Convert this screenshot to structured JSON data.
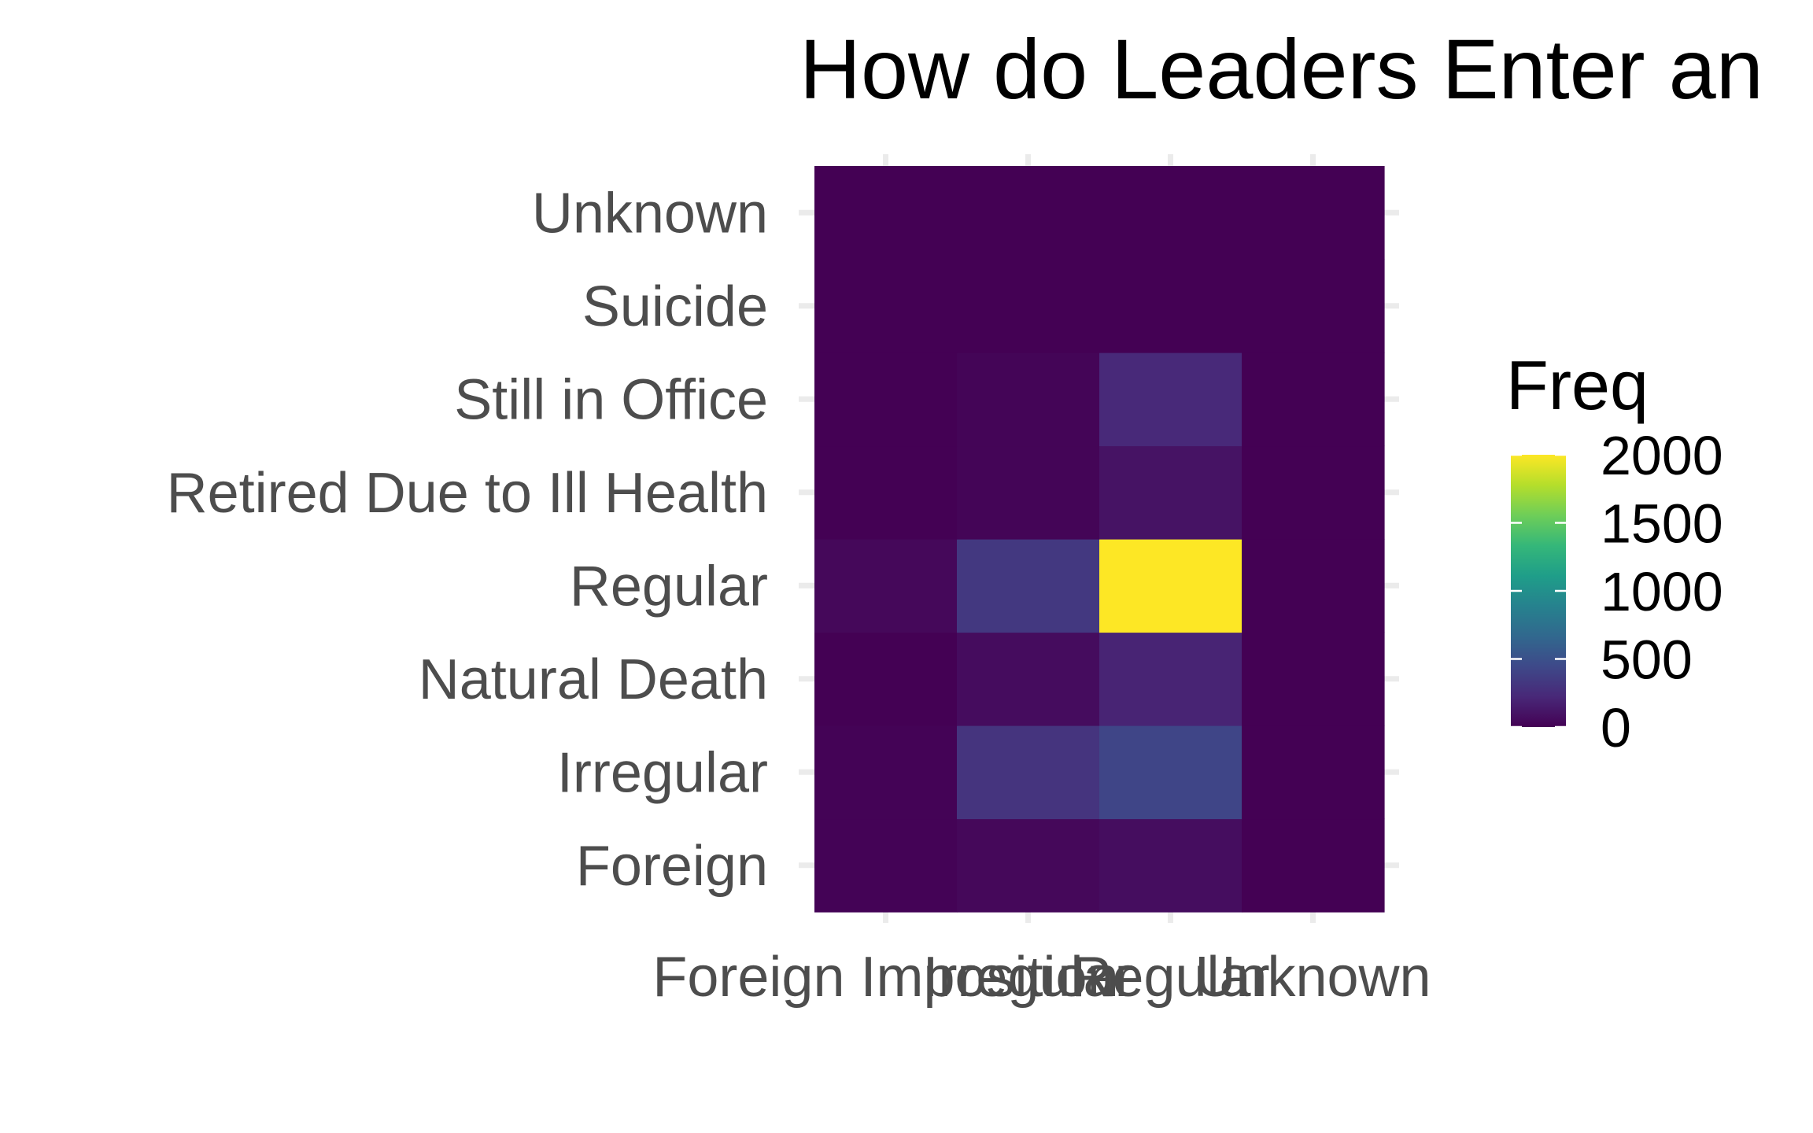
{
  "chart_data": {
    "type": "heatmap",
    "title": "How do Leaders Enter an",
    "xlabel": "",
    "ylabel": "",
    "x_categories": [
      "Foreign Imposition",
      "Irregular",
      "Regular",
      "Unknown"
    ],
    "y_categories": [
      "Foreign",
      "Irregular",
      "Natural Death",
      "Regular",
      "Retired Due to Ill Health",
      "Still in Office",
      "Suicide",
      "Unknown"
    ],
    "values": [
      [
        10,
        40,
        70,
        0
      ],
      [
        10,
        300,
        420,
        0
      ],
      [
        0,
        60,
        200,
        0
      ],
      [
        40,
        330,
        2000,
        0
      ],
      [
        0,
        20,
        100,
        0
      ],
      [
        0,
        20,
        230,
        0
      ],
      [
        0,
        0,
        0,
        0
      ],
      [
        0,
        0,
        0,
        0
      ]
    ],
    "legend": {
      "title": "Freq",
      "ticks": [
        0,
        500,
        1000,
        1500,
        2000
      ],
      "placement": "right"
    },
    "colorscale": [
      "#440154",
      "#482878",
      "#3e4989",
      "#31688e",
      "#26828e",
      "#1f9e89",
      "#35b779",
      "#6ece58",
      "#b5de2b",
      "#fde725"
    ],
    "vmin": 0,
    "vmax": 2000,
    "grid": true
  }
}
